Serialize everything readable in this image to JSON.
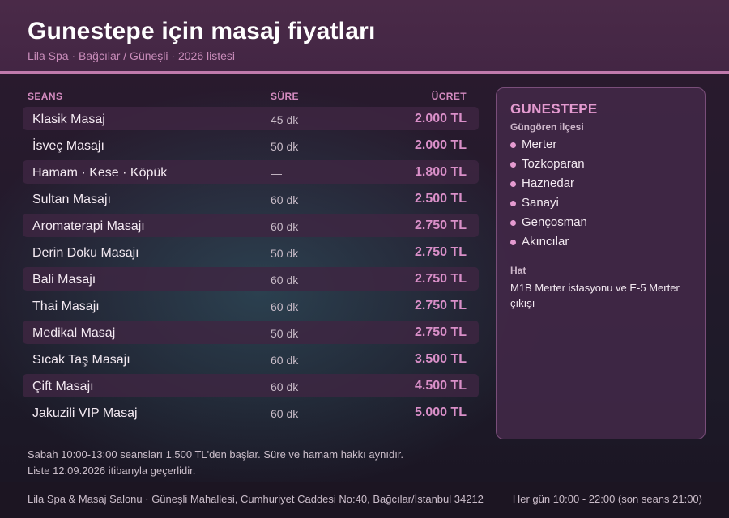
{
  "header": {
    "title": "Gunestepe için masaj fiyatları",
    "subtitle": "Lila Spa · Bağcılar / Güneşli · 2026 listesi"
  },
  "table": {
    "col_name": "SEANS",
    "col_duration": "SÜRE",
    "col_price": "ÜCRET",
    "rows": [
      {
        "name": "Klasik Masaj",
        "duration": "45 dk",
        "price": "2.000 TL"
      },
      {
        "name": "İsveç Masajı",
        "duration": "50 dk",
        "price": "2.000 TL"
      },
      {
        "name": "Hamam · Kese · Köpük",
        "duration": "—",
        "price": "1.800 TL"
      },
      {
        "name": "Sultan Masajı",
        "duration": "60 dk",
        "price": "2.500 TL"
      },
      {
        "name": "Aromaterapi Masajı",
        "duration": "60 dk",
        "price": "2.750 TL"
      },
      {
        "name": "Derin Doku Masajı",
        "duration": "50 dk",
        "price": "2.750 TL"
      },
      {
        "name": "Bali Masajı",
        "duration": "60 dk",
        "price": "2.750 TL"
      },
      {
        "name": "Thai Masajı",
        "duration": "60 dk",
        "price": "2.750 TL"
      },
      {
        "name": "Medikal Masaj",
        "duration": "50 dk",
        "price": "2.750 TL"
      },
      {
        "name": "Sıcak Taş Masajı",
        "duration": "60 dk",
        "price": "3.500 TL"
      },
      {
        "name": "Çift Masajı",
        "duration": "60 dk",
        "price": "4.500 TL"
      },
      {
        "name": "Jakuzili VIP Masaj",
        "duration": "60 dk",
        "price": "5.000 TL"
      }
    ]
  },
  "panel": {
    "title": "GUNESTEPE",
    "subtitle": "Güngören ilçesi",
    "areas": [
      "Merter",
      "Tozkoparan",
      "Haznedar",
      "Sanayi",
      "Gençosman",
      "Akıncılar"
    ],
    "hat_label": "Hat",
    "hat_text": "M1B Merter istasyonu ve E-5 Merter çıkışı"
  },
  "notes": {
    "line1": "Sabah 10:00-13:00 seansları 1.500 TL'den başlar. Süre ve hamam hakkı aynıdır.",
    "line2": "Liste 12.09.2026 itibarıyla geçerlidir."
  },
  "footer": {
    "address": "Lila Spa & Masaj Salonu · Güneşli Mahallesi, Cumhuriyet Caddesi No:40, Bağcılar/İstanbul 34212",
    "hours": "Her gün 10:00 - 22:00 (son seans 21:00)"
  },
  "colors": {
    "accent": "#d98fc8",
    "header_bg": "#4a2a48",
    "header_border": "#c07aac"
  }
}
